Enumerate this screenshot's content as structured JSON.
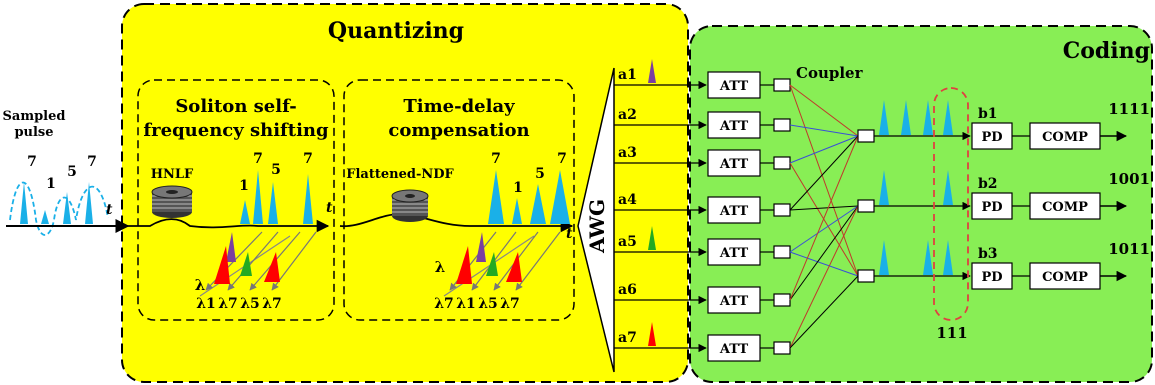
{
  "input": {
    "label_line1": "Sampled",
    "label_line2": "pulse",
    "pulse_values": [
      "7",
      "1",
      "5",
      "7"
    ],
    "time_axis": "t"
  },
  "quantizing": {
    "title": "Quantizing",
    "ssfs": {
      "title_line1": "Soliton self-",
      "title_line2": "frequency shifting",
      "fiber_label": "HNLF",
      "pulse_values": [
        "1",
        "7",
        "5",
        "7"
      ],
      "time_axis": "t",
      "lambda_label": "λ",
      "wavelengths": [
        "λ1",
        "λ7",
        "λ5",
        "λ7"
      ]
    },
    "tdc": {
      "title_line1": "Time-delay",
      "title_line2": "compensation",
      "fiber_label": "Flattened-NDF",
      "pulse_values": [
        "7",
        "1",
        "5",
        "7"
      ],
      "time_axis": "t",
      "lambda_label": "λ",
      "wavelengths": [
        "λ7",
        "λ1",
        "λ5",
        "λ7"
      ]
    },
    "awg_label": "AWG"
  },
  "coding": {
    "title": "Coding",
    "ports": [
      "a1",
      "a2",
      "a3",
      "a4",
      "a5",
      "a6",
      "a7"
    ],
    "att_label": "ATT",
    "coupler_label": "Coupler",
    "outputs": [
      {
        "name": "b1",
        "pd": "PD",
        "comp": "COMP",
        "code": "1111"
      },
      {
        "name": "b2",
        "pd": "PD",
        "comp": "COMP",
        "code": "1001"
      },
      {
        "name": "b3",
        "pd": "PD",
        "comp": "COMP",
        "code": "1011"
      }
    ],
    "selection_label": "111"
  },
  "colors": {
    "quantizing_bg": "#ffff00",
    "coding_bg": "#88ee55",
    "pulse": "#1ab0e8",
    "red": "#ff0000",
    "green": "#22aa22",
    "purple": "#7a3fa0",
    "line_red": "#c0392b",
    "line_blue": "#3a4fd8"
  }
}
